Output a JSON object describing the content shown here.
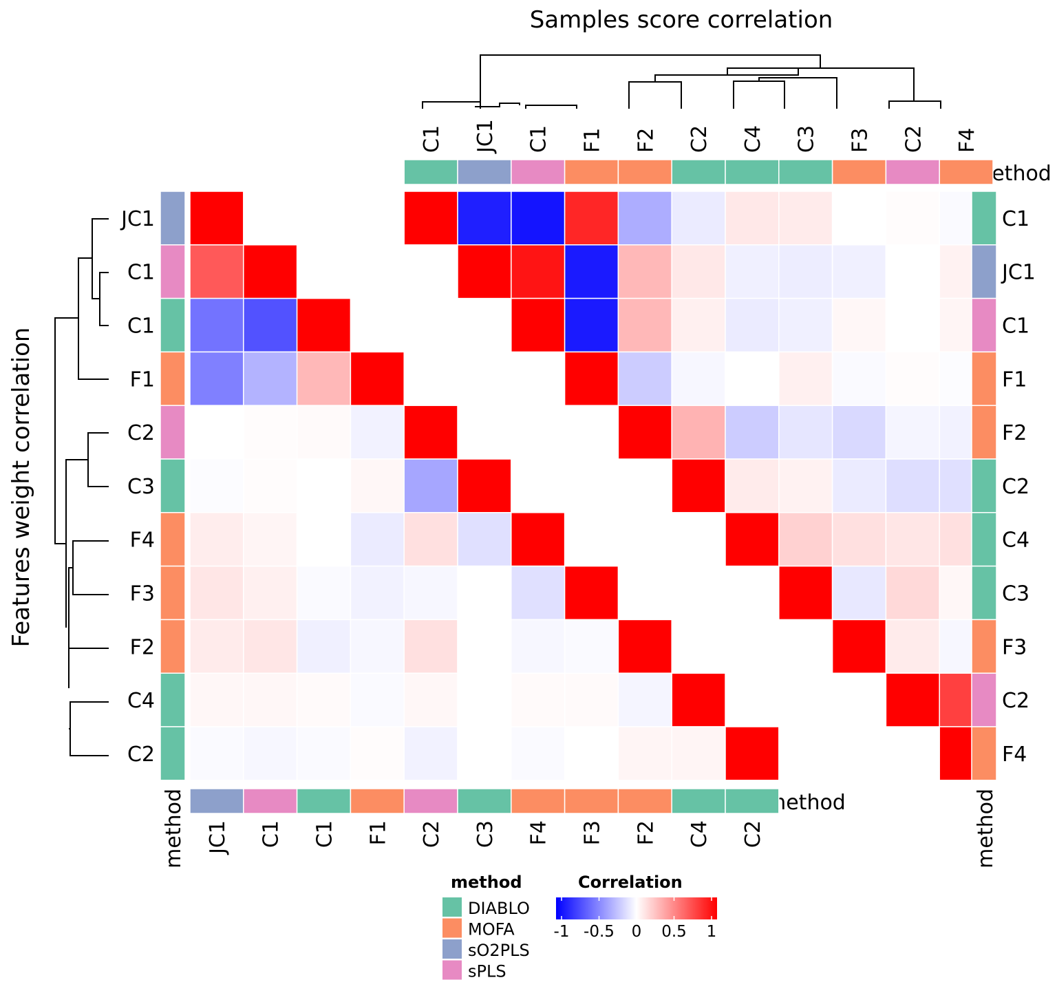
{
  "title_top": "Samples score correlation",
  "title_left": "Features weight correlation",
  "annotation_label": "method",
  "colors": {
    "DIABLO": "#66C2A5",
    "MOFA": "#FC8D62",
    "sO2PLS": "#8DA0CB",
    "sPLS": "#E78AC3",
    "neg": "#0000FF",
    "mid": "#FFFFFF",
    "pos": "#FF0000"
  },
  "legend": {
    "method_title": "method",
    "methods": [
      "DIABLO",
      "MOFA",
      "sO2PLS",
      "sPLS"
    ],
    "corr_title": "Correlation",
    "corr_ticks": [
      "-1",
      "-0.5",
      "0",
      "0.5",
      "1"
    ],
    "corr_tick_values": [
      -1,
      -0.5,
      0,
      0.5,
      1
    ]
  },
  "chart_data": [
    {
      "type": "heatmap",
      "title": "Samples score correlation",
      "layout": "upper-triangle",
      "columns": [
        {
          "label": "C1",
          "method": "DIABLO"
        },
        {
          "label": "JC1",
          "method": "sO2PLS"
        },
        {
          "label": "C1",
          "method": "sPLS"
        },
        {
          "label": "F1",
          "method": "MOFA"
        },
        {
          "label": "F2",
          "method": "MOFA"
        },
        {
          "label": "C2",
          "method": "DIABLO"
        },
        {
          "label": "C4",
          "method": "DIABLO"
        },
        {
          "label": "C3",
          "method": "DIABLO"
        },
        {
          "label": "F3",
          "method": "MOFA"
        },
        {
          "label": "C2",
          "method": "sPLS"
        },
        {
          "label": "F4",
          "method": "MOFA"
        }
      ],
      "rows": [
        {
          "label": "C1",
          "method": "DIABLO"
        },
        {
          "label": "JC1",
          "method": "sO2PLS"
        },
        {
          "label": "C1",
          "method": "sPLS"
        },
        {
          "label": "F1",
          "method": "MOFA"
        },
        {
          "label": "F2",
          "method": "MOFA"
        },
        {
          "label": "C2",
          "method": "DIABLO"
        },
        {
          "label": "C4",
          "method": "DIABLO"
        },
        {
          "label": "C3",
          "method": "DIABLO"
        },
        {
          "label": "F3",
          "method": "MOFA"
        },
        {
          "label": "C2",
          "method": "sPLS"
        },
        {
          "label": "F4",
          "method": "MOFA"
        }
      ],
      "values": [
        [
          1,
          -0.88,
          -0.92,
          0.85,
          -0.32,
          -0.08,
          0.09,
          0.08,
          0,
          0.01,
          -0.02
        ],
        [
          null,
          1,
          0.92,
          -0.9,
          0.28,
          0.09,
          -0.06,
          -0.07,
          -0.06,
          0,
          0.05
        ],
        [
          null,
          null,
          1,
          -0.9,
          0.28,
          0.06,
          -0.08,
          -0.06,
          0.03,
          0,
          0.04
        ],
        [
          null,
          null,
          null,
          1,
          -0.2,
          -0.03,
          0,
          0.06,
          -0.02,
          0.01,
          -0.01
        ],
        [
          null,
          null,
          null,
          null,
          1,
          0.3,
          -0.2,
          -0.1,
          -0.15,
          -0.04,
          -0.05
        ],
        [
          null,
          null,
          null,
          null,
          null,
          1,
          0.08,
          0.05,
          -0.08,
          -0.13,
          -0.12
        ],
        [
          null,
          null,
          null,
          null,
          null,
          null,
          1,
          0.18,
          0.12,
          0.1,
          0.12
        ],
        [
          null,
          null,
          null,
          null,
          null,
          null,
          null,
          1,
          -0.09,
          0.15,
          0.03
        ],
        [
          null,
          null,
          null,
          null,
          null,
          null,
          null,
          null,
          1,
          0.08,
          -0.03
        ],
        [
          null,
          null,
          null,
          null,
          null,
          null,
          null,
          null,
          null,
          1,
          0.75
        ],
        [
          null,
          null,
          null,
          null,
          null,
          null,
          null,
          null,
          null,
          null,
          1
        ]
      ]
    },
    {
      "type": "heatmap",
      "title": "Features weight correlation",
      "layout": "lower-triangle",
      "columns": [
        {
          "label": "JC1",
          "method": "sO2PLS"
        },
        {
          "label": "C1",
          "method": "sPLS"
        },
        {
          "label": "C1",
          "method": "DIABLO"
        },
        {
          "label": "F1",
          "method": "MOFA"
        },
        {
          "label": "C2",
          "method": "sPLS"
        },
        {
          "label": "C3",
          "method": "DIABLO"
        },
        {
          "label": "F4",
          "method": "MOFA"
        },
        {
          "label": "F3",
          "method": "MOFA"
        },
        {
          "label": "F2",
          "method": "MOFA"
        },
        {
          "label": "C4",
          "method": "DIABLO"
        },
        {
          "label": "C2",
          "method": "DIABLO"
        }
      ],
      "rows": [
        {
          "label": "JC1",
          "method": "sO2PLS"
        },
        {
          "label": "C1",
          "method": "sPLS"
        },
        {
          "label": "C1",
          "method": "DIABLO"
        },
        {
          "label": "F1",
          "method": "MOFA"
        },
        {
          "label": "C2",
          "method": "sPLS"
        },
        {
          "label": "C3",
          "method": "DIABLO"
        },
        {
          "label": "F4",
          "method": "MOFA"
        },
        {
          "label": "F3",
          "method": "MOFA"
        },
        {
          "label": "F2",
          "method": "MOFA"
        },
        {
          "label": "C4",
          "method": "DIABLO"
        },
        {
          "label": "C2",
          "method": "DIABLO"
        }
      ],
      "values": [
        [
          1,
          null,
          null,
          null,
          null,
          null,
          null,
          null,
          null,
          null,
          null
        ],
        [
          0.65,
          1,
          null,
          null,
          null,
          null,
          null,
          null,
          null,
          null,
          null
        ],
        [
          -0.55,
          -0.68,
          1,
          null,
          null,
          null,
          null,
          null,
          null,
          null,
          null
        ],
        [
          -0.5,
          -0.3,
          0.28,
          1,
          null,
          null,
          null,
          null,
          null,
          null,
          null
        ],
        [
          0,
          0.01,
          0.02,
          -0.05,
          1,
          null,
          null,
          null,
          null,
          null,
          null
        ],
        [
          -0.01,
          0.01,
          0,
          0.03,
          -0.35,
          1,
          null,
          null,
          null,
          null,
          null
        ],
        [
          0.07,
          0.04,
          0,
          -0.08,
          0.12,
          -0.12,
          1,
          null,
          null,
          null,
          null
        ],
        [
          0.1,
          0.06,
          -0.02,
          -0.05,
          -0.03,
          0,
          -0.12,
          1,
          null,
          null,
          null
        ],
        [
          0.08,
          0.1,
          -0.06,
          -0.03,
          0.12,
          0,
          -0.03,
          -0.02,
          1,
          null,
          null
        ],
        [
          0.03,
          0.03,
          0.02,
          -0.02,
          0.03,
          0,
          0.02,
          0.02,
          -0.04,
          1,
          null
        ],
        [
          -0.02,
          -0.03,
          -0.02,
          0.01,
          -0.05,
          0,
          -0.02,
          0,
          0.04,
          0.04,
          1
        ]
      ]
    }
  ]
}
